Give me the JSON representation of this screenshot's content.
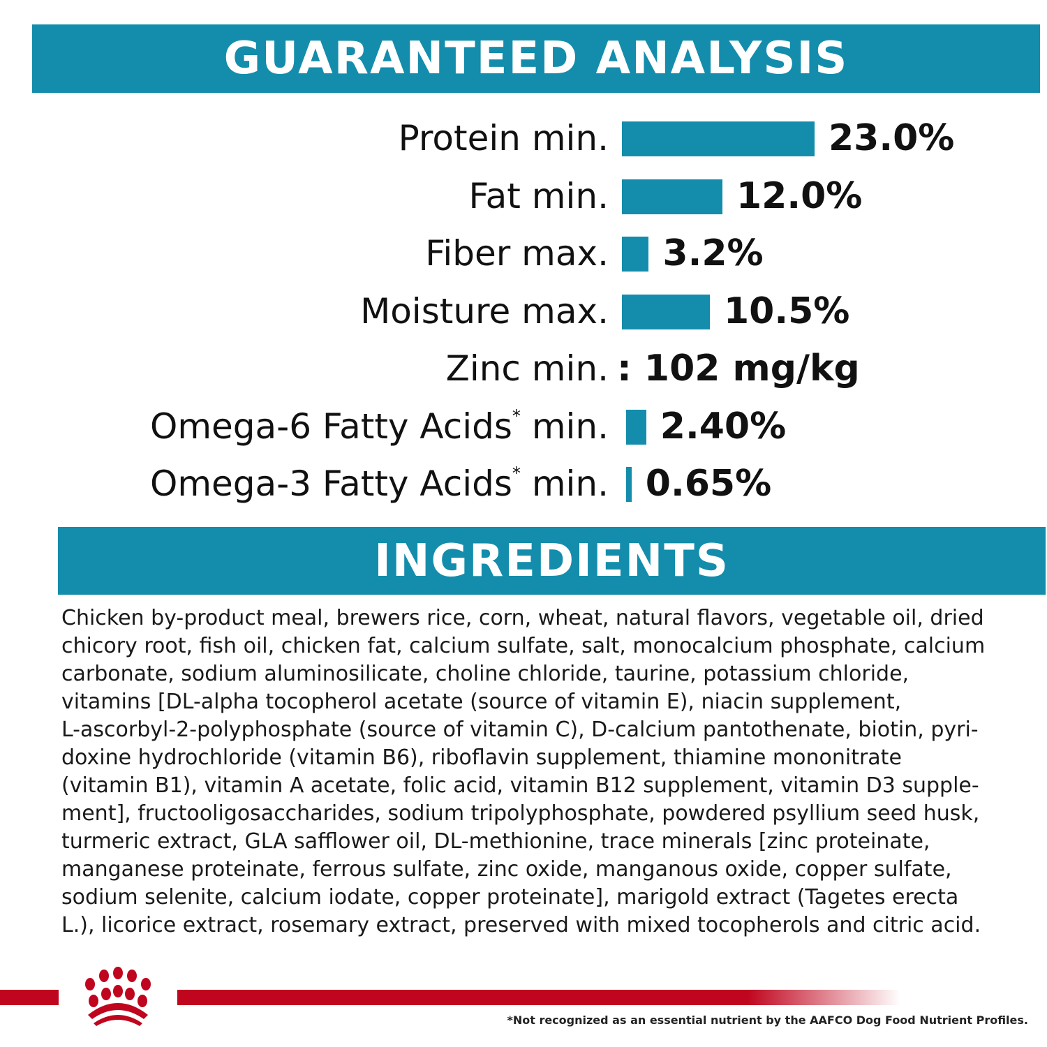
{
  "headers": {
    "analysis": "GUARANTEED ANALYSIS",
    "ingredients": "INGREDIENTS"
  },
  "colors": {
    "accent": "#138dab",
    "brand_red": "#c0051e"
  },
  "chart_data": {
    "type": "bar",
    "orientation": "horizontal",
    "title": "GUARANTEED ANALYSIS",
    "rows": [
      {
        "label": "Protein min.",
        "value": 23.0,
        "display": "23.0%",
        "bar": true,
        "asterisk": false
      },
      {
        "label": "Fat min.",
        "value": 12.0,
        "display": "12.0%",
        "bar": true,
        "asterisk": false
      },
      {
        "label": "Fiber max.",
        "value": 3.2,
        "display": "3.2%",
        "bar": true,
        "asterisk": false
      },
      {
        "label": "Moisture max.",
        "value": 10.5,
        "display": "10.5%",
        "bar": true,
        "asterisk": false
      },
      {
        "label": "Zinc min.",
        "value": 102,
        "display": ": 102 mg/kg",
        "bar": false,
        "asterisk": false
      },
      {
        "label": "Omega-6 Fatty Acids",
        "suffix": " min.",
        "value": 2.4,
        "display": "2.40%",
        "bar": true,
        "asterisk": true
      },
      {
        "label": "Omega-3 Fatty Acids",
        "suffix": " min.",
        "value": 0.65,
        "display": "0.65%",
        "bar": true,
        "asterisk": true
      }
    ]
  },
  "ingredients_lines": [
    "Chicken by-product meal, brewers rice, corn, wheat, natural flavors, vegetable oil, dried",
    "chicory root, fish oil, chicken fat, calcium sulfate, salt, monocalcium phosphate, calcium",
    "carbonate, sodium aluminosilicate, choline chloride, taurine, potassium chloride,",
    "vitamins [DL-alpha tocopherol acetate (source of vitamin E), niacin supplement,",
    "L-ascorbyl-2-polyphosphate (source of vitamin C), D-calcium pantothenate, biotin, pyri-",
    "doxine hydrochloride (vitamin B6), riboflavin supplement, thiamine mononitrate",
    "(vitamin B1), vitamin A acetate, folic acid, vitamin B12 supplement, vitamin D3 supple-",
    "ment], fructooligosaccharides, sodium tripolyphosphate, powdered psyllium seed husk,",
    "turmeric extract, GLA safflower oil, DL-methionine, trace minerals [zinc proteinate,",
    "manganese proteinate, ferrous sulfate, zinc oxide, manganous oxide, copper sulfate,",
    "sodium selenite, calcium iodate, copper proteinate], marigold extract (Tagetes erecta",
    "L.), licorice extract, rosemary extract, preserved with mixed tocopherols and citric acid."
  ],
  "footnote": "*Not recognized as an essential nutrient by the AAFCO Dog Food Nutrient Profiles.",
  "asterisk": "*",
  "logo": {
    "icon": "royal-canin-crown-icon"
  }
}
